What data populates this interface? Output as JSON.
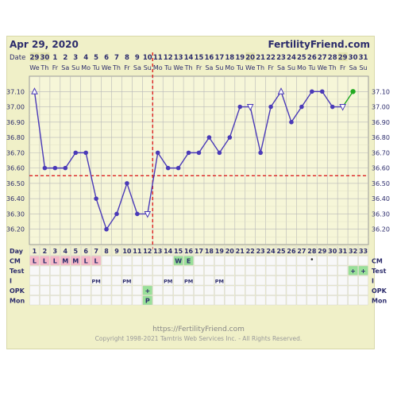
{
  "header": {
    "date": "Apr 29, 2020",
    "site": "FertilityFriend.com"
  },
  "footer": {
    "url": "https://FertilityFriend.com",
    "copyright": "Copyright 1998-2021 Tamtris Web Services Inc. - All Rights Reserved."
  },
  "colors": {
    "line": "#4a3ab8",
    "current": "#22aa22",
    "coverline": "#dd2222",
    "grid": "#b8b8b8",
    "background": "#f0f0c8",
    "label": "#2c2c6c",
    "pink": "#f4b8c8",
    "green": "#99e099",
    "cellBg": "#f8f8f8"
  },
  "chart_data": {
    "type": "line",
    "title": "",
    "row_labels": {
      "date": "Date",
      "day": "Day",
      "cm": "CM",
      "test": "Test",
      "i": "I",
      "opk": "OPK",
      "mon": "Mon"
    },
    "dates": [
      "29",
      "30",
      "1",
      "2",
      "3",
      "4",
      "5",
      "6",
      "7",
      "8",
      "9",
      "10",
      "11",
      "12",
      "13",
      "14",
      "15",
      "16",
      "17",
      "18",
      "19",
      "20",
      "21",
      "22",
      "23",
      "24",
      "25",
      "26",
      "27",
      "28",
      "29",
      "30",
      "31"
    ],
    "weekdays": [
      "We",
      "Th",
      "Fr",
      "Sa",
      "Su",
      "Mo",
      "Tu",
      "We",
      "Th",
      "Fr",
      "Sa",
      "Su",
      "Mo",
      "Tu",
      "We",
      "Th",
      "Fr",
      "Sa",
      "Su",
      "Mo",
      "Tu",
      "We",
      "Th",
      "Fr",
      "Sa",
      "Su",
      "Mo",
      "Tu",
      "We",
      "Th",
      "Fr",
      "Sa",
      "Su"
    ],
    "days": [
      1,
      2,
      3,
      4,
      5,
      6,
      7,
      8,
      9,
      10,
      11,
      12,
      13,
      14,
      15,
      16,
      17,
      18,
      19,
      20,
      21,
      22,
      23,
      24,
      25,
      26,
      27,
      28,
      29,
      30,
      31,
      32,
      33
    ],
    "ylim": [
      36.1,
      37.2
    ],
    "yticks": [
      36.2,
      36.3,
      36.4,
      36.5,
      36.6,
      36.7,
      36.8,
      36.9,
      37.0,
      37.1
    ],
    "coverline": 36.55,
    "ovulation_day": 12,
    "temps": [
      37.1,
      36.6,
      36.6,
      36.6,
      36.7,
      36.7,
      36.4,
      36.2,
      36.3,
      36.5,
      36.3,
      36.3,
      36.7,
      36.6,
      36.6,
      36.7,
      36.7,
      36.8,
      36.7,
      36.8,
      37.0,
      37.0,
      36.7,
      37.0,
      37.1,
      36.9,
      37.0,
      37.1,
      37.1,
      37.0,
      37.0,
      37.1,
      null
    ],
    "open_markers": [
      1,
      12,
      22,
      25,
      31
    ],
    "current_day": 32,
    "cm": {
      "1": "L",
      "2": "L",
      "3": "L",
      "4": "M",
      "5": "M",
      "6": "L",
      "7": "L",
      "15": "W",
      "16": "E"
    },
    "cm_colors": {
      "L": "pink",
      "M": "pink",
      "W": "green",
      "E": "green"
    },
    "test": {
      "32": "+",
      "33": "+"
    },
    "dot_marker_day": 28,
    "intercourse": {
      "7": "PM",
      "10": "PM",
      "14": "PM",
      "16": "PM",
      "19": "PM"
    },
    "opk": {
      "12": "+"
    },
    "mon": {
      "12": "P"
    }
  }
}
